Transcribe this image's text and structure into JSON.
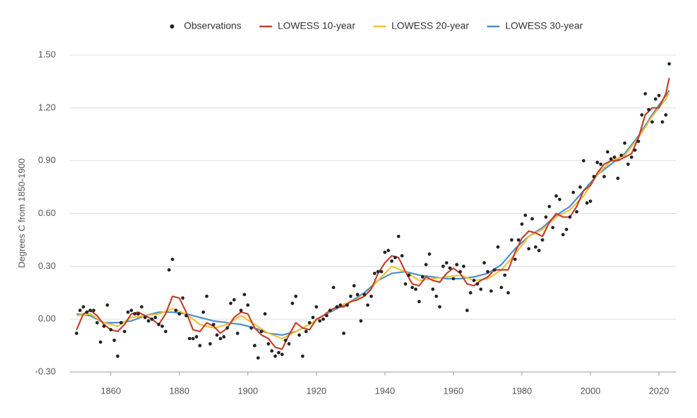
{
  "chart_data": {
    "type": "line",
    "y_label": "Degrees C from 1850-1900",
    "xlim": [
      1848,
      2025
    ],
    "xticks": [
      1860,
      1880,
      1900,
      1920,
      1940,
      1960,
      1980,
      2000,
      2020
    ],
    "ylim": [
      -0.3,
      1.5
    ],
    "yticks": [
      {
        "value": -0.3,
        "label": "-0.30"
      },
      {
        "value": 0,
        "label": "0.00"
      },
      {
        "value": 0.3,
        "label": "0.30"
      },
      {
        "value": 0.6,
        "label": "0.60"
      },
      {
        "value": 0.9,
        "label": "0.90"
      },
      {
        "value": 1.2,
        "label": "1.20"
      },
      {
        "value": 1.5,
        "label": "1.50"
      }
    ],
    "grid": true,
    "legend": "top",
    "series": [
      {
        "name": "Observations",
        "style": "markers",
        "color": "#222222",
        "x": [
          1850,
          1851,
          1852,
          1853,
          1854,
          1855,
          1856,
          1857,
          1858,
          1859,
          1860,
          1861,
          1862,
          1863,
          1864,
          1865,
          1866,
          1867,
          1868,
          1869,
          1870,
          1871,
          1872,
          1873,
          1874,
          1875,
          1876,
          1877,
          1878,
          1879,
          1880,
          1881,
          1882,
          1883,
          1884,
          1885,
          1886,
          1887,
          1888,
          1889,
          1890,
          1891,
          1892,
          1893,
          1894,
          1895,
          1896,
          1897,
          1898,
          1899,
          1900,
          1901,
          1902,
          1903,
          1904,
          1905,
          1906,
          1907,
          1908,
          1909,
          1910,
          1911,
          1912,
          1913,
          1914,
          1915,
          1916,
          1917,
          1918,
          1919,
          1920,
          1921,
          1922,
          1923,
          1924,
          1925,
          1926,
          1927,
          1928,
          1929,
          1930,
          1931,
          1932,
          1933,
          1934,
          1935,
          1936,
          1937,
          1938,
          1939,
          1940,
          1941,
          1942,
          1943,
          1944,
          1945,
          1946,
          1947,
          1948,
          1949,
          1950,
          1951,
          1952,
          1953,
          1954,
          1955,
          1956,
          1957,
          1958,
          1959,
          1960,
          1961,
          1962,
          1963,
          1964,
          1965,
          1966,
          1967,
          1968,
          1969,
          1970,
          1971,
          1972,
          1973,
          1974,
          1975,
          1976,
          1977,
          1978,
          1979,
          1980,
          1981,
          1982,
          1983,
          1984,
          1985,
          1986,
          1987,
          1988,
          1989,
          1990,
          1991,
          1992,
          1993,
          1994,
          1995,
          1996,
          1997,
          1998,
          1999,
          2000,
          2001,
          2002,
          2003,
          2004,
          2005,
          2006,
          2007,
          2008,
          2009,
          2010,
          2011,
          2012,
          2013,
          2014,
          2015,
          2016,
          2017,
          2018,
          2019,
          2020,
          2021,
          2022,
          2023
        ],
        "values": [
          -0.08,
          0.05,
          0.07,
          0.04,
          0.05,
          0.05,
          -0.02,
          -0.13,
          -0.04,
          0.08,
          -0.06,
          -0.12,
          -0.21,
          -0.02,
          -0.07,
          0.04,
          0.05,
          0.03,
          0.03,
          0.07,
          0.01,
          -0.01,
          0.0,
          0.01,
          -0.03,
          -0.04,
          -0.07,
          0.28,
          0.34,
          0.05,
          0.03,
          0.12,
          0.02,
          -0.11,
          -0.11,
          -0.1,
          -0.15,
          0.04,
          0.13,
          -0.14,
          -0.03,
          -0.09,
          -0.11,
          -0.1,
          -0.05,
          0.09,
          0.11,
          -0.08,
          0.05,
          0.14,
          0.08,
          -0.05,
          -0.15,
          -0.22,
          -0.07,
          0.03,
          -0.14,
          -0.18,
          -0.21,
          -0.19,
          -0.2,
          -0.12,
          -0.14,
          0.09,
          0.13,
          -0.09,
          -0.21,
          -0.07,
          -0.02,
          0.01,
          0.07,
          -0.01,
          0.0,
          0.02,
          0.05,
          0.18,
          0.07,
          0.08,
          -0.08,
          0.08,
          0.13,
          0.19,
          0.14,
          -0.01,
          0.14,
          0.08,
          0.13,
          0.26,
          0.27,
          0.27,
          0.38,
          0.39,
          0.33,
          0.35,
          0.47,
          0.36,
          0.2,
          0.25,
          0.18,
          0.17,
          0.1,
          0.24,
          0.31,
          0.37,
          0.17,
          0.13,
          0.07,
          0.3,
          0.32,
          0.29,
          0.23,
          0.31,
          0.27,
          0.3,
          0.05,
          0.15,
          0.22,
          0.2,
          0.17,
          0.32,
          0.27,
          0.16,
          0.28,
          0.41,
          0.18,
          0.25,
          0.15,
          0.45,
          0.34,
          0.45,
          0.54,
          0.59,
          0.4,
          0.57,
          0.41,
          0.39,
          0.45,
          0.58,
          0.64,
          0.52,
          0.7,
          0.68,
          0.48,
          0.51,
          0.58,
          0.72,
          0.61,
          0.75,
          0.9,
          0.66,
          0.67,
          0.81,
          0.89,
          0.88,
          0.81,
          0.95,
          0.91,
          0.92,
          0.8,
          0.93,
          1.0,
          0.88,
          0.92,
          0.96,
          1.01,
          1.16,
          1.28,
          1.19,
          1.12,
          1.25,
          1.27,
          1.12,
          1.16,
          1.45
        ]
      },
      {
        "name": "LOWESS 10-year",
        "style": "line",
        "color": "#c4402b",
        "x": [
          1850,
          1852,
          1854,
          1856,
          1858,
          1860,
          1862,
          1864,
          1866,
          1868,
          1870,
          1872,
          1874,
          1876,
          1878,
          1880,
          1882,
          1884,
          1886,
          1888,
          1890,
          1892,
          1894,
          1896,
          1898,
          1900,
          1902,
          1904,
          1906,
          1908,
          1910,
          1912,
          1914,
          1916,
          1918,
          1920,
          1922,
          1924,
          1926,
          1928,
          1930,
          1932,
          1934,
          1936,
          1938,
          1940,
          1942,
          1944,
          1946,
          1948,
          1950,
          1952,
          1954,
          1956,
          1958,
          1960,
          1962,
          1964,
          1966,
          1968,
          1970,
          1972,
          1974,
          1976,
          1978,
          1980,
          1982,
          1984,
          1986,
          1988,
          1990,
          1992,
          1994,
          1996,
          1998,
          2000,
          2002,
          2004,
          2006,
          2008,
          2010,
          2012,
          2014,
          2016,
          2018,
          2020,
          2022,
          2023
        ],
        "values": [
          -0.06,
          0.03,
          0.05,
          0.02,
          -0.03,
          -0.06,
          -0.07,
          -0.03,
          0.03,
          0.04,
          0.02,
          0.0,
          -0.03,
          0.03,
          0.13,
          0.12,
          0.04,
          -0.06,
          -0.07,
          -0.02,
          -0.04,
          -0.08,
          -0.05,
          0.01,
          0.04,
          0.03,
          -0.05,
          -0.09,
          -0.11,
          -0.16,
          -0.17,
          -0.09,
          -0.02,
          -0.05,
          -0.06,
          0.0,
          0.02,
          0.05,
          0.07,
          0.07,
          0.1,
          0.11,
          0.13,
          0.17,
          0.26,
          0.32,
          0.36,
          0.35,
          0.27,
          0.2,
          0.19,
          0.24,
          0.22,
          0.21,
          0.26,
          0.29,
          0.26,
          0.2,
          0.19,
          0.22,
          0.24,
          0.28,
          0.28,
          0.28,
          0.38,
          0.46,
          0.5,
          0.49,
          0.47,
          0.55,
          0.6,
          0.58,
          0.58,
          0.64,
          0.73,
          0.76,
          0.83,
          0.88,
          0.9,
          0.9,
          0.92,
          0.94,
          1.03,
          1.16,
          1.2,
          1.2,
          1.28,
          1.37
        ]
      },
      {
        "name": "LOWESS 20-year",
        "style": "line",
        "color": "#f2c03a",
        "x": [
          1850,
          1854,
          1858,
          1862,
          1866,
          1870,
          1874,
          1878,
          1882,
          1886,
          1890,
          1894,
          1898,
          1902,
          1906,
          1910,
          1914,
          1918,
          1922,
          1926,
          1930,
          1934,
          1938,
          1942,
          1946,
          1950,
          1954,
          1958,
          1962,
          1966,
          1970,
          1974,
          1978,
          1982,
          1986,
          1990,
          1994,
          1998,
          2002,
          2006,
          2010,
          2014,
          2018,
          2022,
          2023
        ],
        "values": [
          0.02,
          0.03,
          -0.02,
          -0.04,
          0.01,
          0.02,
          0.03,
          0.06,
          0.03,
          -0.03,
          -0.05,
          -0.03,
          0.02,
          -0.03,
          -0.08,
          -0.11,
          -0.07,
          -0.03,
          0.02,
          0.07,
          0.1,
          0.13,
          0.22,
          0.3,
          0.27,
          0.22,
          0.23,
          0.24,
          0.25,
          0.22,
          0.23,
          0.28,
          0.37,
          0.47,
          0.51,
          0.58,
          0.62,
          0.7,
          0.82,
          0.9,
          0.93,
          1.03,
          1.15,
          1.25,
          1.29
        ]
      },
      {
        "name": "LOWESS 30-year",
        "style": "line",
        "color": "#4b8fcb",
        "x": [
          1850,
          1854,
          1858,
          1862,
          1866,
          1870,
          1874,
          1878,
          1882,
          1886,
          1890,
          1894,
          1898,
          1902,
          1906,
          1910,
          1914,
          1918,
          1922,
          1926,
          1930,
          1934,
          1938,
          1942,
          1946,
          1950,
          1954,
          1958,
          1962,
          1966,
          1970,
          1974,
          1978,
          1982,
          1986,
          1990,
          1994,
          1998,
          2002,
          2006,
          2010,
          2014,
          2018,
          2022,
          2023
        ],
        "values": [
          0.03,
          0.02,
          -0.02,
          -0.02,
          -0.01,
          0.02,
          0.04,
          0.04,
          0.03,
          0.01,
          -0.01,
          -0.02,
          -0.03,
          -0.05,
          -0.08,
          -0.09,
          -0.07,
          -0.03,
          0.02,
          0.06,
          0.1,
          0.15,
          0.22,
          0.26,
          0.27,
          0.25,
          0.24,
          0.23,
          0.23,
          0.24,
          0.26,
          0.31,
          0.4,
          0.47,
          0.52,
          0.59,
          0.64,
          0.73,
          0.82,
          0.88,
          0.94,
          1.04,
          1.16,
          1.27,
          1.3
        ]
      }
    ]
  }
}
